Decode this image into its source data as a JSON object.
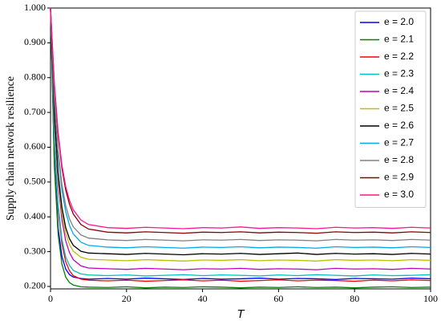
{
  "chart_data": {
    "type": "line",
    "x_label": "T",
    "y_label": "Supply chain network resilience",
    "x": [
      0,
      1,
      2,
      3,
      4,
      5,
      6,
      8,
      10,
      15,
      20,
      25,
      30,
      35,
      40,
      45,
      50,
      55,
      60,
      65,
      70,
      75,
      80,
      85,
      90,
      95,
      100
    ],
    "xlim": [
      0,
      100
    ],
    "xticks": [
      0,
      20,
      40,
      60,
      80,
      100
    ],
    "ylim": [
      0.193,
      1.0
    ],
    "yticks": [
      {
        "value": 0.2,
        "label": "0.200"
      },
      {
        "value": 0.3,
        "label": "0.300"
      },
      {
        "value": 0.4,
        "label": "0.400"
      },
      {
        "value": 0.5,
        "label": "0.500"
      },
      {
        "value": 0.6,
        "label": "0.600"
      },
      {
        "value": 0.7,
        "label": "0.700"
      },
      {
        "value": 0.8,
        "label": "0.800"
      },
      {
        "value": 0.9,
        "label": "0.900"
      },
      {
        "value": 1.0,
        "label": "1.000"
      }
    ],
    "legend": "upper right",
    "series": [
      {
        "name": "e = 2.0",
        "color": "#0000ff",
        "values": [
          1.0,
          0.56,
          0.369,
          0.286,
          0.25,
          0.234,
          0.227,
          0.223,
          0.221,
          0.223,
          0.221,
          0.224,
          0.222,
          0.22,
          0.223,
          0.221,
          0.222,
          0.224,
          0.221,
          0.223,
          0.222,
          0.22,
          0.223,
          0.222,
          0.221,
          0.224,
          0.222
        ]
      },
      {
        "name": "e = 2.1",
        "color": "#008000",
        "values": [
          1.0,
          0.547,
          0.35,
          0.264,
          0.227,
          0.211,
          0.204,
          0.199,
          0.198,
          0.197,
          0.199,
          0.196,
          0.198,
          0.197,
          0.199,
          0.198,
          0.196,
          0.198,
          0.197,
          0.199,
          0.197,
          0.198,
          0.196,
          0.198,
          0.199,
          0.197,
          0.198
        ]
      },
      {
        "name": "e = 2.2",
        "color": "#ff0000",
        "values": [
          1.0,
          0.619,
          0.424,
          0.323,
          0.271,
          0.245,
          0.231,
          0.221,
          0.218,
          0.216,
          0.218,
          0.215,
          0.217,
          0.219,
          0.216,
          0.218,
          0.215,
          0.217,
          0.219,
          0.216,
          0.218,
          0.217,
          0.215,
          0.218,
          0.216,
          0.219,
          0.217
        ]
      },
      {
        "name": "e = 2.3",
        "color": "#00bfbf",
        "values": [
          1.0,
          0.626,
          0.435,
          0.336,
          0.285,
          0.26,
          0.246,
          0.236,
          0.233,
          0.231,
          0.233,
          0.23,
          0.232,
          0.234,
          0.231,
          0.233,
          0.232,
          0.23,
          0.233,
          0.231,
          0.234,
          0.232,
          0.23,
          0.233,
          0.231,
          0.232,
          0.234
        ]
      },
      {
        "name": "e = 2.4",
        "color": "#bf00bf",
        "values": [
          1.0,
          0.681,
          0.497,
          0.392,
          0.331,
          0.297,
          0.277,
          0.259,
          0.253,
          0.251,
          0.249,
          0.252,
          0.25,
          0.248,
          0.251,
          0.25,
          0.252,
          0.249,
          0.251,
          0.25,
          0.248,
          0.252,
          0.25,
          0.251,
          0.249,
          0.252,
          0.25
        ]
      },
      {
        "name": "e = 2.5",
        "color": "#bfbf00",
        "values": [
          1.0,
          0.691,
          0.514,
          0.412,
          0.353,
          0.32,
          0.301,
          0.284,
          0.278,
          0.276,
          0.274,
          0.277,
          0.275,
          0.273,
          0.276,
          0.275,
          0.277,
          0.274,
          0.276,
          0.275,
          0.273,
          0.277,
          0.275,
          0.276,
          0.274,
          0.277,
          0.275
        ]
      },
      {
        "name": "e = 2.6",
        "color": "#000000",
        "values": [
          1.0,
          0.699,
          0.526,
          0.427,
          0.369,
          0.337,
          0.318,
          0.301,
          0.296,
          0.294,
          0.292,
          0.295,
          0.293,
          0.291,
          0.294,
          0.293,
          0.295,
          0.292,
          0.294,
          0.296,
          0.292,
          0.295,
          0.293,
          0.294,
          0.292,
          0.295,
          0.293
        ]
      },
      {
        "name": "e = 2.7",
        "color": "#00a8e8",
        "values": [
          1.0,
          0.739,
          0.578,
          0.477,
          0.415,
          0.375,
          0.351,
          0.327,
          0.318,
          0.313,
          0.311,
          0.314,
          0.312,
          0.31,
          0.313,
          0.312,
          0.314,
          0.311,
          0.313,
          0.312,
          0.31,
          0.314,
          0.312,
          0.313,
          0.311,
          0.314,
          0.312
        ]
      },
      {
        "name": "e = 2.8",
        "color": "#808080",
        "values": [
          1.0,
          0.747,
          0.59,
          0.493,
          0.432,
          0.394,
          0.371,
          0.348,
          0.339,
          0.334,
          0.332,
          0.335,
          0.333,
          0.331,
          0.334,
          0.333,
          0.335,
          0.332,
          0.334,
          0.333,
          0.331,
          0.335,
          0.333,
          0.334,
          0.332,
          0.335,
          0.333
        ]
      },
      {
        "name": "e = 2.9",
        "color": "#8b0000",
        "values": [
          1.0,
          0.78,
          0.636,
          0.54,
          0.477,
          0.436,
          0.408,
          0.378,
          0.365,
          0.356,
          0.354,
          0.357,
          0.355,
          0.353,
          0.356,
          0.355,
          0.357,
          0.354,
          0.356,
          0.355,
          0.353,
          0.357,
          0.355,
          0.356,
          0.354,
          0.357,
          0.355
        ]
      },
      {
        "name": "e = 3.0",
        "color": "#ff1493",
        "values": [
          1.0,
          0.784,
          0.643,
          0.549,
          0.487,
          0.447,
          0.42,
          0.391,
          0.378,
          0.369,
          0.367,
          0.37,
          0.368,
          0.366,
          0.369,
          0.368,
          0.371,
          0.367,
          0.369,
          0.368,
          0.366,
          0.37,
          0.368,
          0.369,
          0.367,
          0.37,
          0.368
        ]
      }
    ]
  }
}
